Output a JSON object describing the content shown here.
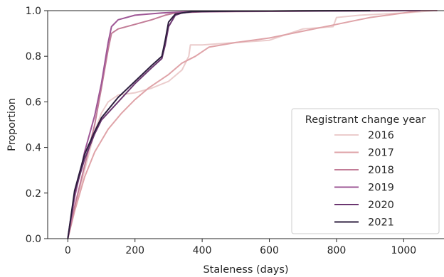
{
  "chart_data": {
    "type": "line",
    "title": "",
    "xlabel": "Staleness (days)",
    "ylabel": "Proportion",
    "xlim": [
      -60,
      1120
    ],
    "ylim": [
      0,
      1
    ],
    "xticks": [
      0,
      200,
      400,
      600,
      800,
      1000
    ],
    "yticks": [
      0.0,
      0.2,
      0.4,
      0.6,
      0.8,
      1.0
    ],
    "xtick_labels": [
      "0",
      "200",
      "400",
      "600",
      "800",
      "1000"
    ],
    "ytick_labels": [
      "0.0",
      "0.2",
      "0.4",
      "0.6",
      "0.8",
      "1.0"
    ],
    "grid": false,
    "legend": {
      "title": "Registrant change year",
      "placement": "lower-right"
    },
    "series": [
      {
        "name": "2016",
        "color": "#ebcccc",
        "x": [
          0,
          20,
          50,
          80,
          100,
          120,
          150,
          200,
          250,
          300,
          340,
          360,
          365,
          400,
          500,
          600,
          700,
          790,
          800,
          870,
          1000,
          1090
        ],
        "y": [
          0,
          0.13,
          0.3,
          0.47,
          0.55,
          0.6,
          0.63,
          0.64,
          0.66,
          0.69,
          0.74,
          0.8,
          0.85,
          0.85,
          0.86,
          0.87,
          0.92,
          0.93,
          0.97,
          0.98,
          0.99,
          1.0
        ]
      },
      {
        "name": "2017",
        "color": "#dfa3a8",
        "x": [
          0,
          20,
          50,
          80,
          120,
          160,
          200,
          240,
          300,
          340,
          380,
          420,
          500,
          600,
          700,
          800,
          900,
          1000,
          1050
        ],
        "y": [
          0,
          0.12,
          0.27,
          0.38,
          0.48,
          0.55,
          0.61,
          0.66,
          0.72,
          0.77,
          0.8,
          0.84,
          0.86,
          0.88,
          0.91,
          0.94,
          0.97,
          0.99,
          1.0
        ]
      },
      {
        "name": "2018",
        "color": "#c27c97",
        "x": [
          0,
          20,
          50,
          80,
          100,
          120,
          130,
          150,
          200,
          250,
          290,
          320,
          400,
          500,
          600,
          700,
          850,
          1000,
          1100
        ],
        "y": [
          0,
          0.14,
          0.32,
          0.5,
          0.66,
          0.83,
          0.9,
          0.92,
          0.94,
          0.96,
          0.98,
          0.99,
          0.995,
          0.996,
          0.997,
          0.998,
          0.999,
          1.0,
          1.0
        ]
      },
      {
        "name": "2019",
        "color": "#9e5796",
        "x": [
          0,
          20,
          50,
          80,
          100,
          120,
          130,
          150,
          200,
          240,
          280,
          350,
          500,
          700,
          900,
          1050
        ],
        "y": [
          0,
          0.18,
          0.38,
          0.54,
          0.68,
          0.86,
          0.93,
          0.96,
          0.98,
          0.985,
          0.99,
          0.995,
          0.997,
          0.998,
          0.999,
          1.0
        ]
      },
      {
        "name": "2020",
        "color": "#6b3670",
        "x": [
          0,
          20,
          50,
          80,
          100,
          150,
          200,
          250,
          280,
          290,
          300,
          320,
          340,
          370,
          500,
          700,
          900
        ],
        "y": [
          0,
          0.2,
          0.35,
          0.46,
          0.52,
          0.6,
          0.68,
          0.75,
          0.79,
          0.85,
          0.93,
          0.98,
          0.99,
          0.995,
          0.998,
          0.999,
          1.0
        ]
      },
      {
        "name": "2021",
        "color": "#2d1e3e",
        "x": [
          0,
          20,
          50,
          80,
          100,
          150,
          200,
          250,
          280,
          290,
          300,
          320,
          340,
          370,
          500,
          700,
          900
        ],
        "y": [
          0,
          0.21,
          0.37,
          0.47,
          0.53,
          0.62,
          0.69,
          0.76,
          0.8,
          0.87,
          0.95,
          0.985,
          0.99,
          0.996,
          0.998,
          0.999,
          1.0
        ]
      }
    ]
  }
}
